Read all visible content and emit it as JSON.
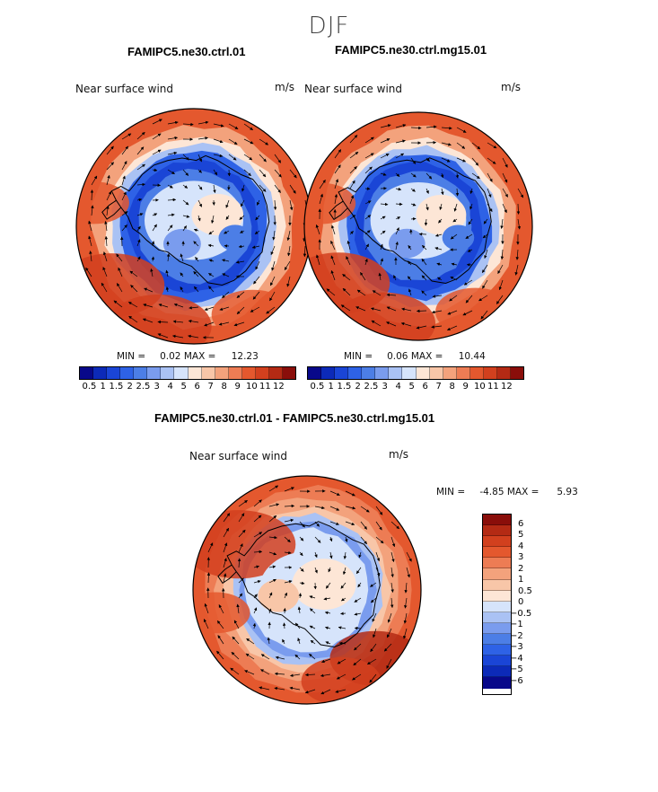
{
  "figure": {
    "season": "DJF",
    "panel_variable": "Near surface wind",
    "panel_units": "m/s"
  },
  "colors": {
    "abs_scale": [
      "#08088a",
      "#0c2ab8",
      "#1a45d6",
      "#2e62e6",
      "#4c7ee6",
      "#7a9cee",
      "#aac2f4",
      "#d6e4fb",
      "#fde6d6",
      "#f8c6a8",
      "#f3a27c",
      "#ed7c54",
      "#e4582e",
      "#d2401e",
      "#b42a14",
      "#8a0e0a"
    ],
    "diff_scale": [
      "#8a0e0a",
      "#b42a14",
      "#d2401e",
      "#e4582e",
      "#ed7c54",
      "#f3a27c",
      "#f8c6a8",
      "#fde6d6",
      "#d6e4fb",
      "#aac2f4",
      "#7a9cee",
      "#4c7ee6",
      "#2e62e6",
      "#1a45d6",
      "#0c2ab8",
      "#08088a"
    ]
  },
  "chart_data": [
    {
      "type": "heatmap",
      "subtype": "polar-stereographic vector map",
      "title": "FAMIPC5.ne30.ctrl.01",
      "variable": "Near surface wind",
      "units": "m/s",
      "region": "Antarctica / Southern Ocean",
      "min_label": "MIN =",
      "min_value": "0.02",
      "max_label": "MAX =",
      "max_value": "12.23",
      "colorbar_ticks": [
        "0.5",
        "1",
        "1.5",
        "2",
        "2.5",
        "3",
        "4",
        "5",
        "6",
        "7",
        "8",
        "9",
        "10",
        "11",
        "12"
      ]
    },
    {
      "type": "heatmap",
      "subtype": "polar-stereographic vector map",
      "title": "FAMIPC5.ne30.ctrl.mg15.01",
      "variable": "Near surface wind",
      "units": "m/s",
      "region": "Antarctica / Southern Ocean",
      "min_label": "MIN =",
      "min_value": "0.06",
      "max_label": "MAX =",
      "max_value": "10.44",
      "colorbar_ticks": [
        "0.5",
        "1",
        "1.5",
        "2",
        "2.5",
        "3",
        "4",
        "5",
        "6",
        "7",
        "8",
        "9",
        "10",
        "11",
        "12"
      ]
    },
    {
      "type": "heatmap",
      "subtype": "polar-stereographic vector difference map",
      "title": "FAMIPC5.ne30.ctrl.01 - FAMIPC5.ne30.ctrl.mg15.01",
      "variable": "Near surface wind",
      "units": "m/s",
      "region": "Antarctica / Southern Ocean",
      "min_label": "MIN =",
      "min_value": "-4.85",
      "max_label": "MAX =",
      "max_value": "5.93",
      "colorbar_ticks": [
        "6",
        "5",
        "4",
        "3",
        "2",
        "1",
        "0.5",
        "0",
        "−0.5",
        "−1",
        "−2",
        "−3",
        "−4",
        "−5",
        "−6"
      ]
    }
  ]
}
